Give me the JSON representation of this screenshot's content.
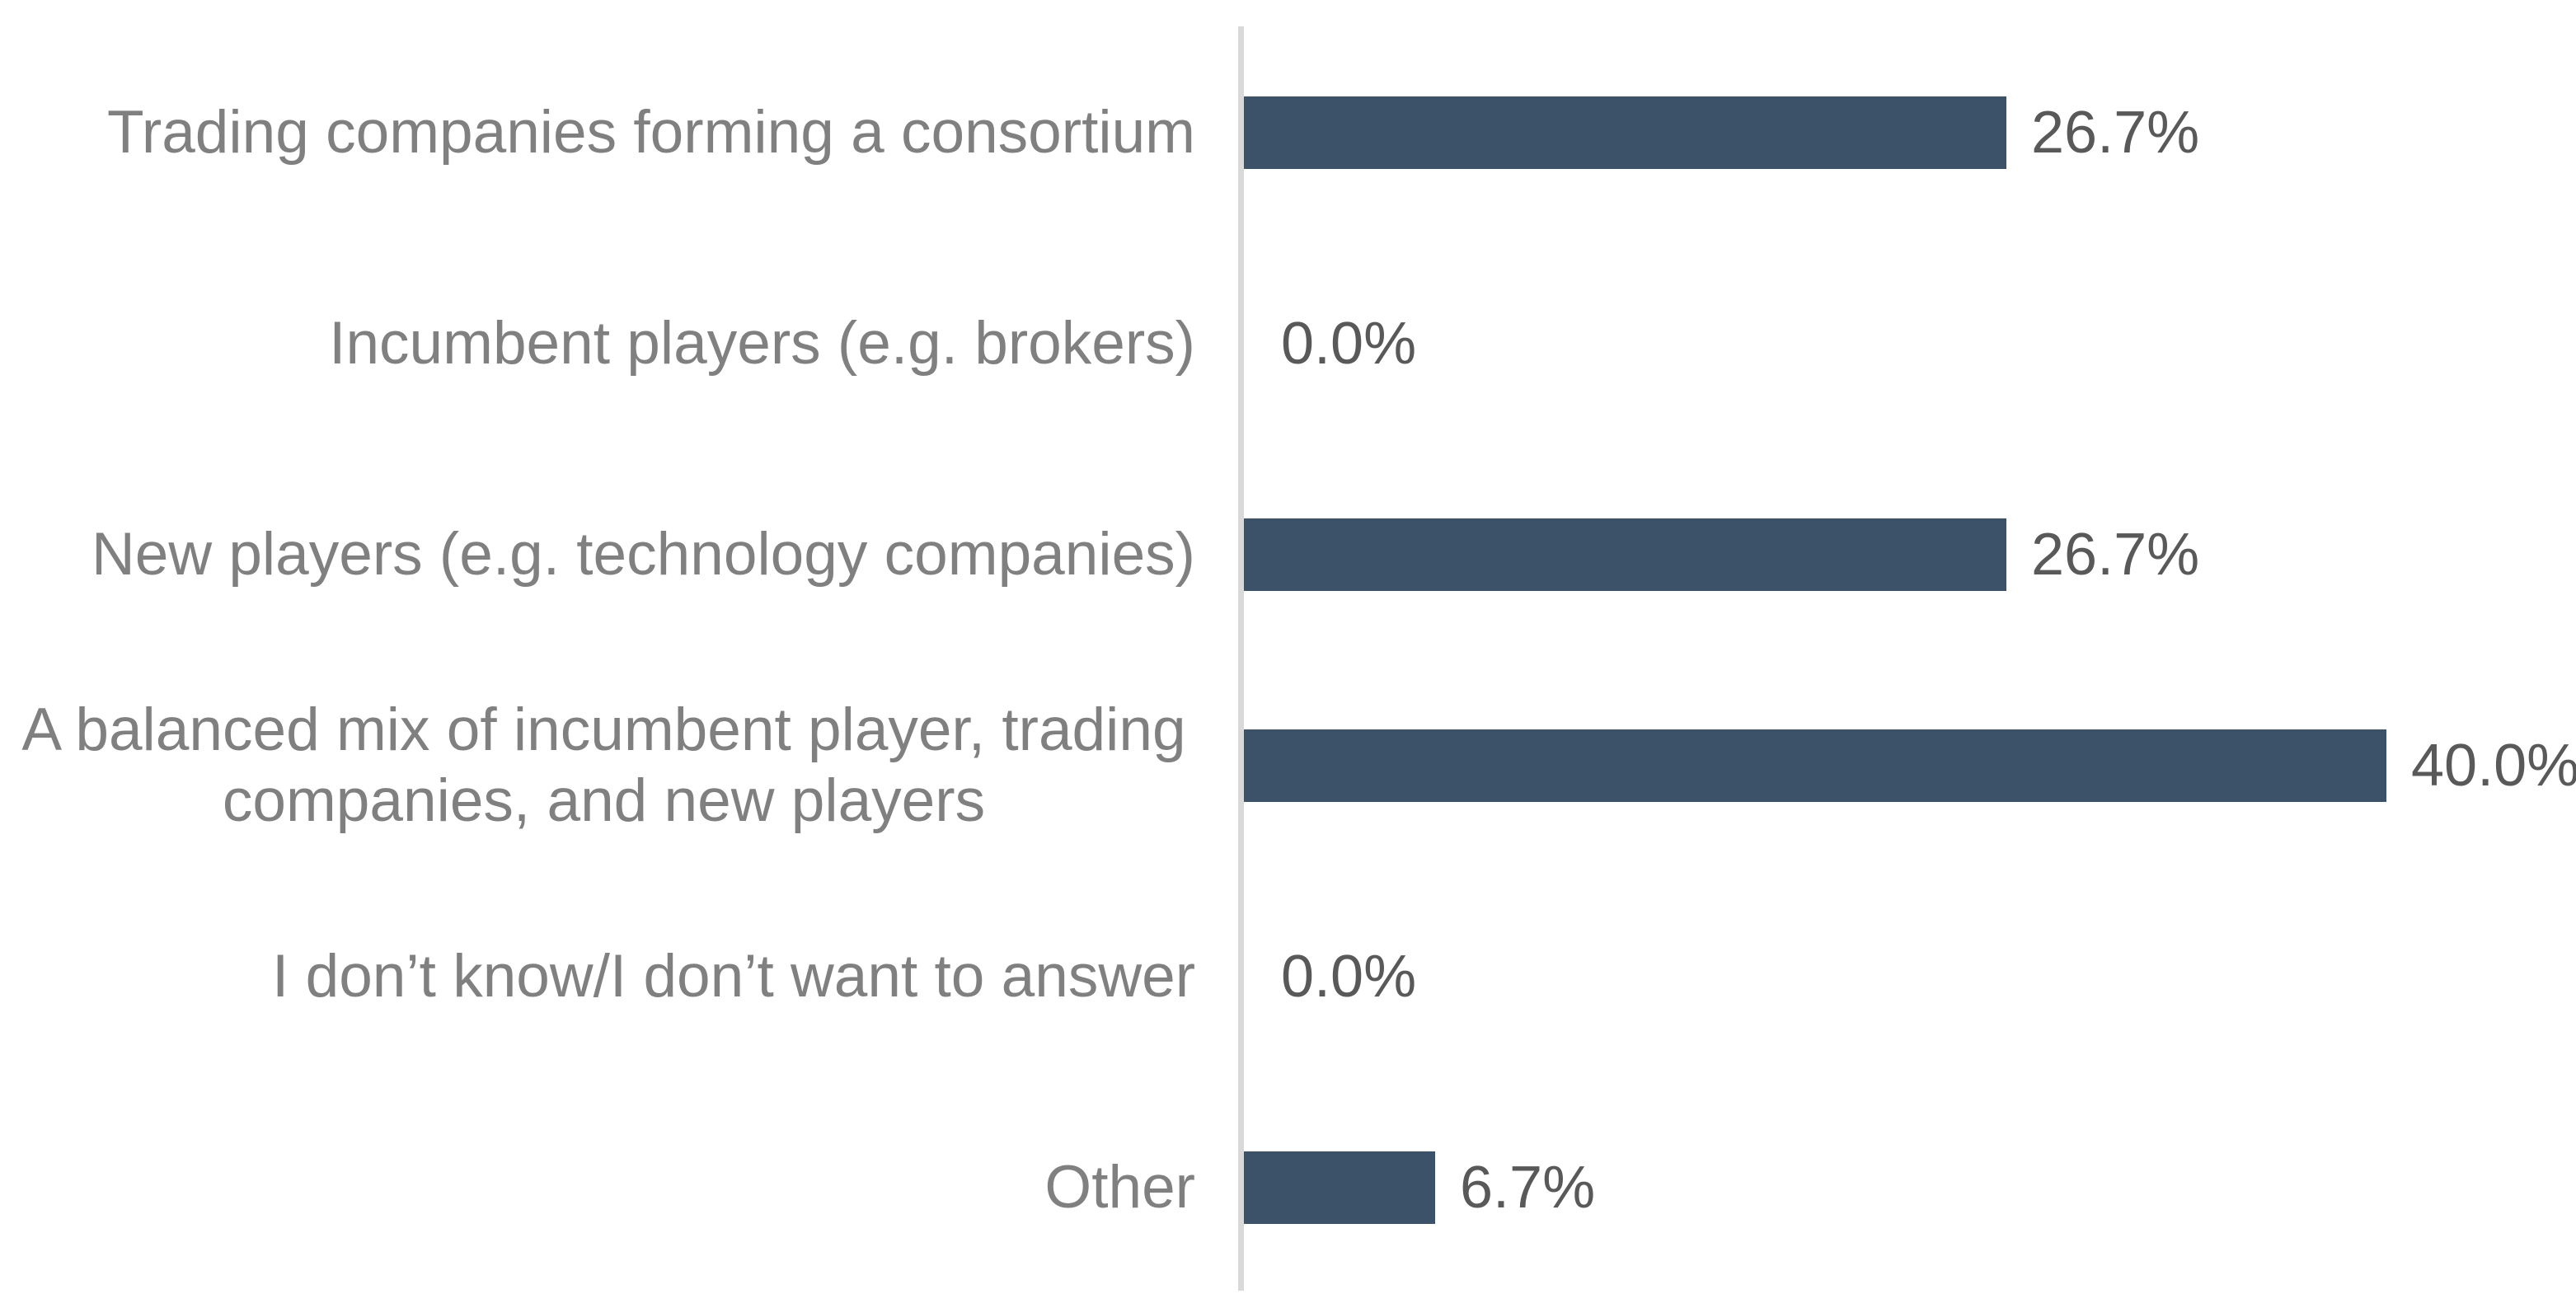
{
  "chart_data": {
    "type": "bar",
    "orientation": "horizontal",
    "title": "",
    "xlabel": "",
    "ylabel": "",
    "grid": false,
    "legend": false,
    "axis_line_side": "left",
    "value_label_position": "end-of-bar",
    "xlim": [
      0,
      46.6
    ],
    "categories": [
      "Trading companies forming a consortium",
      "Incumbent players (e.g. brokers)",
      "New players (e.g. technology companies)",
      "A balanced mix of incumbent player, trading companies, and new players",
      "I don’t know/I don’t want to answer",
      "Other"
    ],
    "values": [
      26.7,
      0.0,
      26.7,
      40.0,
      0.0,
      6.7
    ],
    "value_labels": [
      "26.7%",
      "0.0%",
      "26.7%",
      "40.0%",
      "0.0%",
      "6.7%"
    ],
    "colors": {
      "bar": "#3b5268",
      "axis_line": "#d9d9d9",
      "category_label": "#808080",
      "value_label": "#595959"
    }
  }
}
